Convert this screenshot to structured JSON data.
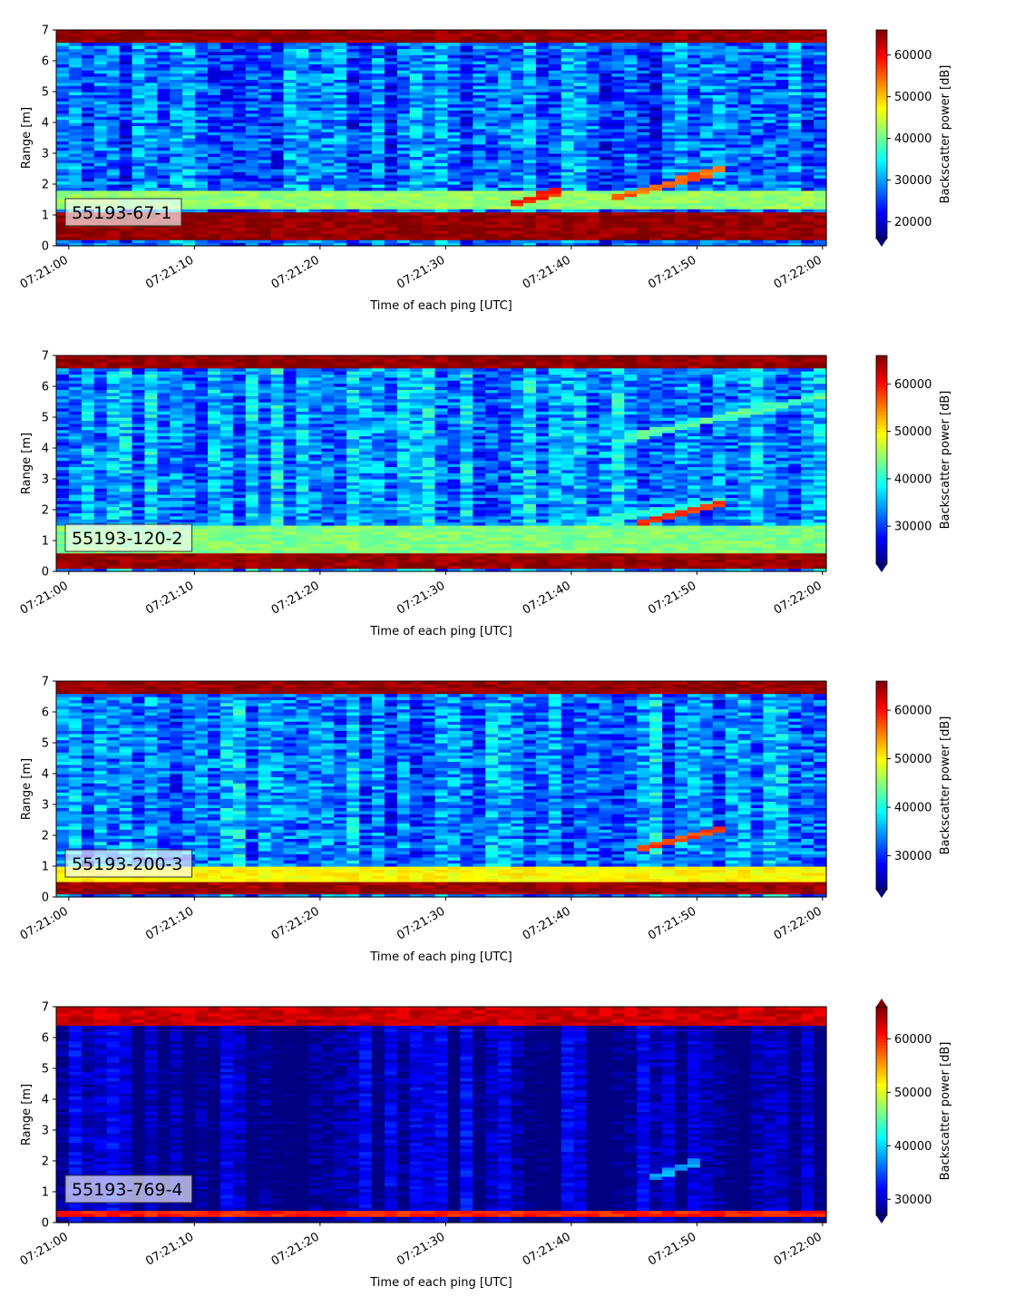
{
  "figure": {
    "xlabel": "Time of each ping [UTC]",
    "ylabel": "Range [m]",
    "colorbar_label": "Backscatter power [dB]",
    "x_ticks": [
      "07:21:00",
      "07:21:10",
      "07:21:20",
      "07:21:30",
      "07:21:40",
      "07:21:50",
      "07:22:00"
    ]
  },
  "chart_data": [
    {
      "type": "heatmap",
      "label": "55193-67-1",
      "xlabel": "Time of each ping [UTC]",
      "ylabel": "Range [m]",
      "xlim": [
        "07:21:00",
        "07:22:00"
      ],
      "ylim": [
        0,
        7
      ],
      "y_ticks": [
        0,
        1,
        2,
        3,
        4,
        5,
        6,
        7
      ],
      "colorbar": {
        "label": "Backscatter power [dB]",
        "ticks": [
          20000,
          30000,
          40000,
          50000,
          60000
        ],
        "range": [
          16000,
          66000
        ],
        "extend": "min",
        "colormap": "jet"
      },
      "features": [
        {
          "name": "near-field band",
          "range_m": [
            0.2,
            1.1
          ],
          "value": 65000
        },
        {
          "name": "surface band",
          "range_m": [
            6.6,
            7.0
          ],
          "value": 65000
        },
        {
          "name": "bubble layer",
          "range_m": [
            1.2,
            1.8
          ],
          "value": 42000
        },
        {
          "name": "target track 1",
          "time_s": [
            35,
            39
          ],
          "range_m": [
            1.3,
            1.8
          ],
          "value": 58000
        },
        {
          "name": "target track 2",
          "time_s": [
            43,
            52
          ],
          "range_m": [
            1.5,
            2.5
          ],
          "value": 55000
        }
      ]
    },
    {
      "type": "heatmap",
      "label": "55193-120-2",
      "xlabel": "Time of each ping [UTC]",
      "ylabel": "Range [m]",
      "xlim": [
        "07:21:00",
        "07:22:00"
      ],
      "ylim": [
        0,
        7
      ],
      "y_ticks": [
        0,
        1,
        2,
        3,
        4,
        5,
        6,
        7
      ],
      "colorbar": {
        "label": "Backscatter power [dB]",
        "ticks": [
          30000,
          40000,
          50000,
          60000
        ],
        "range": [
          22000,
          66000
        ],
        "extend": "min",
        "colormap": "jet"
      },
      "features": [
        {
          "name": "near-field band",
          "range_m": [
            0.1,
            0.6
          ],
          "value": 65000
        },
        {
          "name": "surface band",
          "range_m": [
            6.6,
            7.0
          ],
          "value": 65000
        },
        {
          "name": "bubble layer",
          "range_m": [
            0.6,
            1.5
          ],
          "value": 44000
        },
        {
          "name": "target track 1",
          "time_s": [
            45,
            52
          ],
          "range_m": [
            1.5,
            2.2
          ],
          "value": 58000
        },
        {
          "name": "target track 2",
          "time_s": [
            41,
            52
          ],
          "range_m": [
            1.6,
            2.3
          ],
          "value": 40000
        },
        {
          "name": "upper track",
          "time_s": [
            44,
            60
          ],
          "range_m": [
            4.3,
            5.7
          ],
          "value": 42000
        }
      ]
    },
    {
      "type": "heatmap",
      "label": "55193-200-3",
      "xlabel": "Time of each ping [UTC]",
      "ylabel": "Range [m]",
      "xlim": [
        "07:21:00",
        "07:22:00"
      ],
      "ylim": [
        0,
        7
      ],
      "y_ticks": [
        0,
        1,
        2,
        3,
        4,
        5,
        6,
        7
      ],
      "colorbar": {
        "label": "Backscatter power [dB]",
        "ticks": [
          30000,
          40000,
          50000,
          60000
        ],
        "range": [
          23000,
          66000
        ],
        "extend": "min",
        "colormap": "jet"
      },
      "features": [
        {
          "name": "near-field band",
          "range_m": [
            0.1,
            0.5
          ],
          "value": 65000
        },
        {
          "name": "surface band",
          "range_m": [
            6.6,
            7.0
          ],
          "value": 65000
        },
        {
          "name": "bubble layer",
          "range_m": [
            0.5,
            1.0
          ],
          "value": 50000
        },
        {
          "name": "target track 1",
          "time_s": [
            45,
            52
          ],
          "range_m": [
            1.5,
            2.2
          ],
          "value": 58000
        }
      ]
    },
    {
      "type": "heatmap",
      "label": "55193-769-4",
      "xlabel": "Time of each ping [UTC]",
      "ylabel": "Range [m]",
      "xlim": [
        "07:21:00",
        "07:22:00"
      ],
      "ylim": [
        0,
        7
      ],
      "y_ticks": [
        0,
        1,
        2,
        3,
        4,
        5,
        6,
        7
      ],
      "colorbar": {
        "label": "Backscatter power [dB]",
        "ticks": [
          30000,
          40000,
          50000,
          60000
        ],
        "range": [
          27000,
          66000
        ],
        "extend": "both",
        "colormap": "jet"
      },
      "features": [
        {
          "name": "near-field band",
          "range_m": [
            0.2,
            0.4
          ],
          "value": 60000
        },
        {
          "name": "surface band",
          "range_m": [
            6.4,
            7.0
          ],
          "value": 63000
        },
        {
          "name": "target track 1",
          "time_s": [
            46,
            50
          ],
          "range_m": [
            1.4,
            2.0
          ],
          "value": 38000
        }
      ]
    }
  ]
}
